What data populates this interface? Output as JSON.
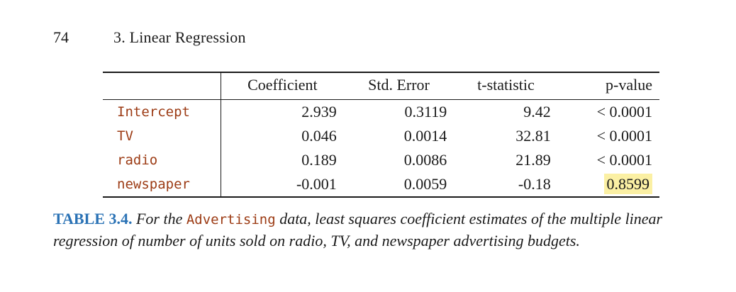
{
  "page": {
    "number": "74",
    "running_head": "3.  Linear Regression"
  },
  "table": {
    "columns": [
      "Coefficient",
      "Std. Error",
      "t-statistic",
      "p-value"
    ],
    "rows": [
      {
        "name": "Intercept",
        "coefficient": "2.939",
        "std_error": "0.3119",
        "t_statistic": "9.42",
        "p_value": "< 0.0001"
      },
      {
        "name": "TV",
        "coefficient": "0.046",
        "std_error": "0.0014",
        "t_statistic": "32.81",
        "p_value": "< 0.0001"
      },
      {
        "name": "radio",
        "coefficient": "0.189",
        "std_error": "0.0086",
        "t_statistic": "21.89",
        "p_value": "< 0.0001"
      },
      {
        "name": "newspaper",
        "coefficient": "-0.001",
        "std_error": "0.0059",
        "t_statistic": "-0.18",
        "p_value": "0.8599"
      }
    ],
    "highlight_color": "#fbf0a4"
  },
  "caption": {
    "label": "TABLE 3.4.",
    "text_before": "For the",
    "code": "Advertising",
    "text_after": "data, least squares coefficient estimates of the multiple linear regression of number of units sold on radio, TV, and newspaper advertising budgets.",
    "label_color": "#2a72b5",
    "code_color": "#9c3b14"
  }
}
